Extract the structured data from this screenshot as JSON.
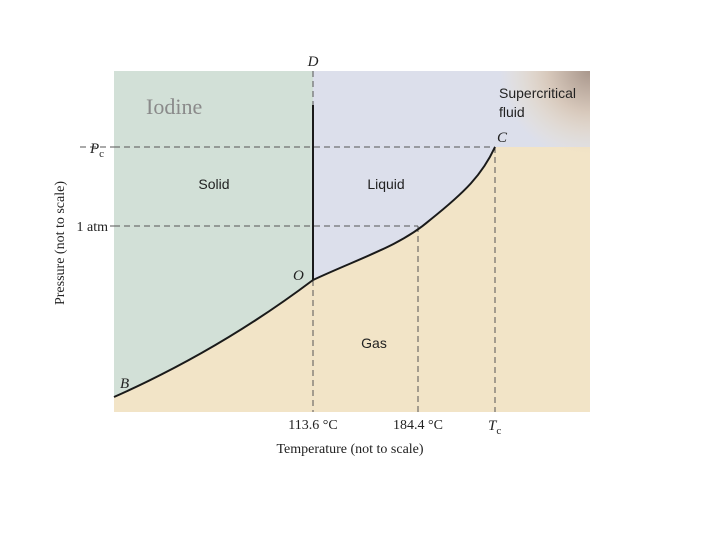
{
  "title": "Iodine",
  "axes": {
    "xlabel": "Temperature (not to scale)",
    "ylabel": "Pressure (not to scale)"
  },
  "regions": {
    "solid": "Solid",
    "liquid": "Liquid",
    "gas": "Gas",
    "supercritical_line1": "Supercritical",
    "supercritical_line2": "fluid"
  },
  "points": {
    "D": "D",
    "C": "C",
    "O": "O",
    "B": "B"
  },
  "y_ticks": {
    "pc_main": "P",
    "pc_sub": "c",
    "one_atm": "1 atm"
  },
  "x_ticks": {
    "t1": "113.6 °C",
    "t2": "184.4 °C",
    "tc_main": "T",
    "tc_sub": "c"
  },
  "colors": {
    "solid": "#d2e0d7",
    "liquid": "#dcdfeb",
    "gas": "#f2e4c7",
    "supercritical": "#b9a89e",
    "curve": "#1a1a1a",
    "dashed": "#555555"
  }
}
